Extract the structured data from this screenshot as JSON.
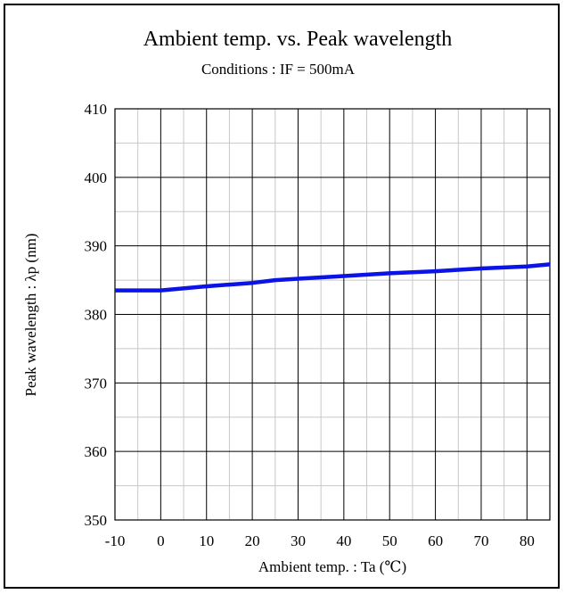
{
  "chart_data": {
    "type": "line",
    "title": "Ambient temp. vs. Peak wavelength",
    "subtitle": "Conditions : IF = 500mA",
    "xlabel": "Ambient temp. : Ta (℃)",
    "ylabel": "Peak wavelength : λp (nm)",
    "xlim": [
      -10,
      85
    ],
    "ylim": [
      350,
      410
    ],
    "x_ticks": [
      -10,
      0,
      10,
      20,
      30,
      40,
      50,
      60,
      70,
      80
    ],
    "x_tick_labels": [
      "-10",
      "0",
      "10",
      "20",
      "30",
      "40",
      "50",
      "60",
      "70",
      "80"
    ],
    "y_ticks": [
      350,
      360,
      370,
      380,
      390,
      400,
      410
    ],
    "y_tick_labels": [
      "350",
      "360",
      "370",
      "380",
      "390",
      "400",
      "410"
    ],
    "x_minor_step": 5,
    "y_minor_step": 5,
    "grid": true,
    "series": [
      {
        "color": "#0a14e6",
        "x": [
          -10,
          0,
          10,
          20,
          25,
          30,
          40,
          50,
          60,
          70,
          80,
          85
        ],
        "y": [
          383.5,
          383.5,
          384.1,
          384.6,
          385.0,
          385.2,
          385.6,
          386.0,
          386.3,
          386.7,
          387.0,
          387.3
        ]
      }
    ]
  }
}
